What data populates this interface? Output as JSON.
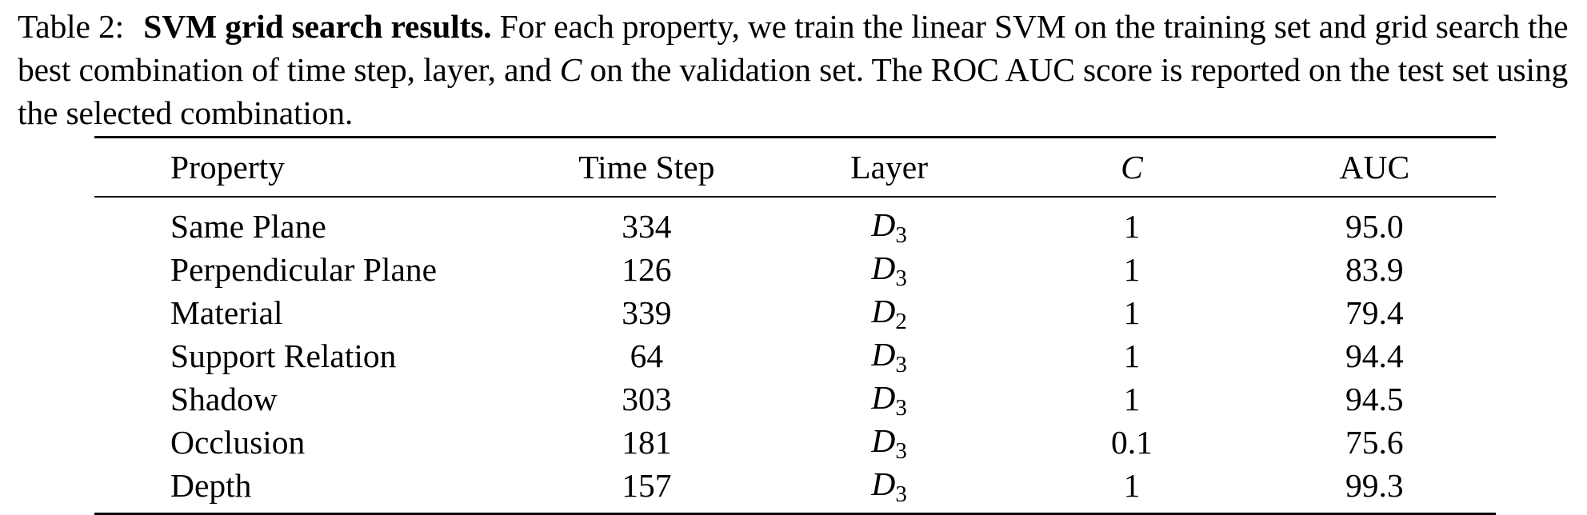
{
  "caption": {
    "label": "Table 2:",
    "title": "SVM grid search results.",
    "text_part1": "For each property, we train the linear SVM on the training set and grid search the best combination of time step, layer, and",
    "math_symbol": "C",
    "text_part2": "on the validation set. The ROC AUC score is reported on the test set using the selected combination."
  },
  "table": {
    "headers": {
      "property": "Property",
      "time_step": "Time Step",
      "layer": "Layer",
      "c": "C",
      "auc": "AUC"
    },
    "rows": [
      {
        "property": "Same Plane",
        "time_step": "334",
        "layer_base": "D",
        "layer_sub": "3",
        "c": "1",
        "auc": "95.0"
      },
      {
        "property": "Perpendicular Plane",
        "time_step": "126",
        "layer_base": "D",
        "layer_sub": "3",
        "c": "1",
        "auc": "83.9"
      },
      {
        "property": "Material",
        "time_step": "339",
        "layer_base": "D",
        "layer_sub": "2",
        "c": "1",
        "auc": "79.4"
      },
      {
        "property": "Support Relation",
        "time_step": "64",
        "layer_base": "D",
        "layer_sub": "3",
        "c": "1",
        "auc": "94.4"
      },
      {
        "property": "Shadow",
        "time_step": "303",
        "layer_base": "D",
        "layer_sub": "3",
        "c": "1",
        "auc": "94.5"
      },
      {
        "property": "Occlusion",
        "time_step": "181",
        "layer_base": "D",
        "layer_sub": "3",
        "c": "0.1",
        "auc": "75.6"
      },
      {
        "property": "Depth",
        "time_step": "157",
        "layer_base": "D",
        "layer_sub": "3",
        "c": "1",
        "auc": "99.3"
      }
    ]
  }
}
